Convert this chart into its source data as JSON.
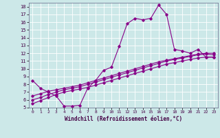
{
  "xlabel": "Windchill (Refroidissement éolien,°C)",
  "background_color": "#cce8e8",
  "line_color": "#880088",
  "grid_color": "#aacccc",
  "xlim": [
    -0.5,
    23.5
  ],
  "ylim": [
    5,
    18.5
  ],
  "xticks": [
    0,
    1,
    2,
    3,
    4,
    5,
    6,
    7,
    8,
    9,
    10,
    11,
    12,
    13,
    14,
    15,
    16,
    17,
    18,
    19,
    20,
    21,
    22,
    23
  ],
  "yticks": [
    5,
    6,
    7,
    8,
    9,
    10,
    11,
    12,
    13,
    14,
    15,
    16,
    17,
    18
  ],
  "series1_x": [
    0,
    1,
    2,
    3,
    4,
    5,
    6,
    7,
    8,
    9,
    10,
    11,
    12,
    13,
    14,
    15,
    16,
    17,
    18,
    19,
    20,
    21,
    22,
    23
  ],
  "series1_y": [
    8.5,
    7.5,
    7.0,
    6.5,
    5.2,
    5.2,
    5.3,
    7.5,
    8.5,
    9.8,
    10.2,
    12.9,
    15.8,
    16.5,
    16.3,
    16.5,
    18.2,
    17.0,
    12.5,
    12.3,
    12.0,
    12.5,
    11.5,
    11.5
  ],
  "series2_x": [
    0,
    1,
    2,
    3,
    4,
    5,
    6,
    7,
    8,
    9,
    10,
    11,
    12,
    13,
    14,
    15,
    16,
    17,
    18,
    19,
    20,
    21,
    22,
    23
  ],
  "series2_y": [
    5.5,
    5.9,
    6.3,
    6.7,
    7.0,
    7.2,
    7.4,
    7.6,
    7.9,
    8.2,
    8.5,
    8.8,
    9.1,
    9.4,
    9.7,
    10.0,
    10.3,
    10.6,
    10.8,
    11.0,
    11.2,
    11.4,
    11.5,
    11.5
  ],
  "series3_x": [
    0,
    1,
    2,
    3,
    4,
    5,
    6,
    7,
    8,
    9,
    10,
    11,
    12,
    13,
    14,
    15,
    16,
    17,
    18,
    19,
    20,
    21,
    22,
    23
  ],
  "series3_y": [
    6.0,
    6.3,
    6.7,
    7.0,
    7.3,
    7.5,
    7.7,
    8.0,
    8.3,
    8.6,
    8.9,
    9.2,
    9.5,
    9.8,
    10.1,
    10.4,
    10.7,
    11.0,
    11.2,
    11.4,
    11.6,
    11.8,
    11.9,
    11.8
  ],
  "series4_x": [
    0,
    1,
    2,
    3,
    4,
    5,
    6,
    7,
    8,
    9,
    10,
    11,
    12,
    13,
    14,
    15,
    16,
    17,
    18,
    19,
    20,
    21,
    22,
    23
  ],
  "series4_y": [
    6.5,
    6.8,
    7.1,
    7.3,
    7.5,
    7.7,
    7.9,
    8.2,
    8.5,
    8.8,
    9.1,
    9.4,
    9.7,
    10.0,
    10.3,
    10.6,
    10.9,
    11.1,
    11.3,
    11.5,
    11.7,
    11.9,
    12.0,
    12.0
  ]
}
